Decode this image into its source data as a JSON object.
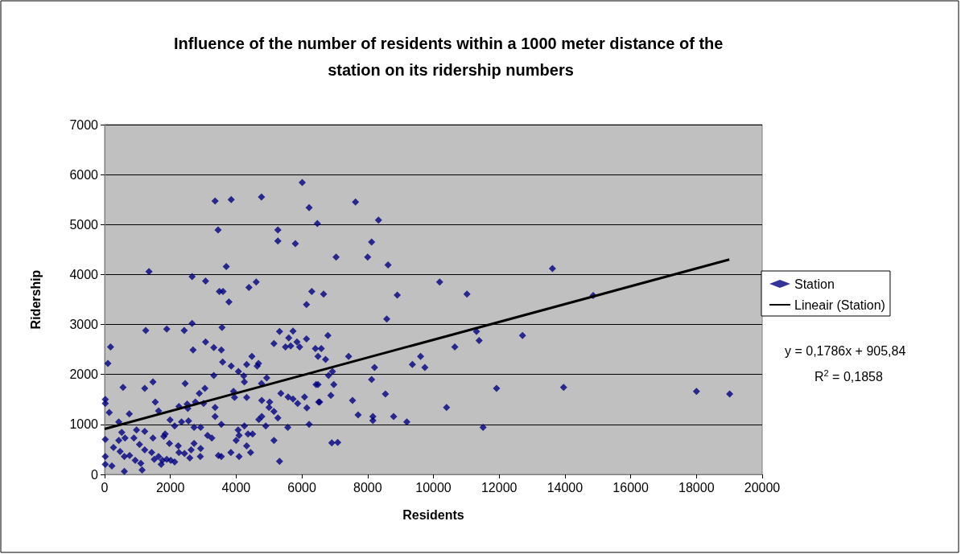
{
  "chart_data": {
    "type": "scatter",
    "title": "Influence of the number of residents within a 1000 meter distance of the station on its ridership numbers",
    "xlabel": "Residents",
    "ylabel": "Ridership",
    "xlim": [
      0,
      20000
    ],
    "xticks": [
      0,
      2000,
      4000,
      6000,
      8000,
      10000,
      12000,
      14000,
      16000,
      18000,
      20000
    ],
    "ylim": [
      0,
      7000
    ],
    "yticks": [
      0,
      1000,
      2000,
      3000,
      4000,
      5000,
      6000,
      7000
    ],
    "grid": "y",
    "legend": "right",
    "annotations": [
      "y = 0,1786x + 905,84",
      "R$^{2}$ = 0,1858"
    ],
    "series": [
      {
        "name": "Station",
        "marker": "diamond",
        "color": "#000080",
        "x": [
          1350,
          2660,
          3070,
          3360,
          3450,
          3700,
          3490,
          3600,
          3850,
          4390,
          4610,
          4770,
          5270,
          5270,
          5800,
          6010,
          6220,
          6470,
          6300,
          6660,
          7630,
          8330,
          8120,
          7040,
          8000,
          8620,
          10190,
          8900,
          11020,
          13620,
          14860,
          13960,
          18000,
          19010,
          8580,
          6790,
          6590,
          6490,
          6720,
          7420,
          8210,
          9360,
          9610,
          9740,
          10650,
          11310,
          11390,
          12710,
          6810,
          6930,
          8120,
          6970,
          6490,
          6880,
          6540,
          7540,
          8540,
          11920,
          10400,
          7710,
          8160,
          8160,
          8790,
          9190,
          11510,
          6910,
          7090,
          3780,
          6140,
          1250,
          1890,
          2420,
          2660,
          3570,
          180,
          100,
          3070,
          2690,
          3320,
          3550,
          3590,
          3850,
          4320,
          4480,
          4640,
          4680,
          5150,
          5320,
          5600,
          5730,
          5850,
          5500,
          5660,
          5930,
          6140,
          6410,
          3320,
          560,
          1220,
          1470,
          2450,
          2880,
          3050,
          4070,
          4230,
          4250,
          4770,
          4930,
          3920,
          3950,
          4320,
          20,
          20,
          140,
          750,
          1540,
          1640,
          2260,
          2510,
          2530,
          2760,
          3010,
          3360,
          3360,
          4780,
          5020,
          5000,
          5150,
          5270,
          5360,
          5580,
          5730,
          5870,
          6080,
          6150,
          6430,
          6510,
          430,
          1990,
          2130,
          2340,
          2550,
          2720,
          2920,
          3550,
          4060,
          4250,
          4360,
          4500,
          4690,
          4780,
          4900,
          5570,
          6220,
          20,
          270,
          520,
          430,
          620,
          970,
          1220,
          1470,
          1840,
          1800,
          1970,
          2240,
          2720,
          3130,
          3260,
          4000,
          4090,
          5150,
          890,
          1060,
          1220,
          1430,
          470,
          600,
          760,
          930,
          1100,
          20,
          20,
          220,
          600,
          1140,
          1510,
          1640,
          1760,
          1890,
          2010,
          2130,
          1720,
          2260,
          2430,
          2590,
          2630,
          2920,
          2910,
          3460,
          3550,
          3840,
          4090,
          4320,
          4440,
          5320
        ],
        "values": [
          4060,
          3960,
          3870,
          5470,
          4890,
          4160,
          3660,
          3660,
          5500,
          3740,
          3850,
          5550,
          4890,
          4670,
          4620,
          5840,
          5340,
          5020,
          3660,
          3610,
          5450,
          5090,
          4650,
          4350,
          4350,
          4190,
          3850,
          3590,
          3610,
          4120,
          3580,
          1740,
          1660,
          1610,
          3110,
          2780,
          2520,
          2360,
          2300,
          2360,
          2140,
          2200,
          2360,
          2140,
          2550,
          2860,
          2680,
          2780,
          1980,
          2060,
          1900,
          1800,
          1800,
          1580,
          1450,
          1480,
          1610,
          1720,
          1340,
          1190,
          1160,
          1080,
          1160,
          1050,
          940,
          630,
          640,
          3450,
          3400,
          2880,
          2910,
          2880,
          3020,
          2940,
          2550,
          2220,
          2650,
          2490,
          2540,
          2490,
          2250,
          2170,
          2200,
          2360,
          2170,
          2220,
          2620,
          2860,
          2730,
          2870,
          2650,
          2550,
          2570,
          2550,
          2710,
          2520,
          1980,
          1740,
          1720,
          1850,
          1820,
          1620,
          1720,
          2060,
          1970,
          1850,
          1820,
          1930,
          1660,
          1540,
          1540,
          1500,
          1420,
          1240,
          1210,
          1450,
          1270,
          1360,
          1410,
          1320,
          1450,
          1420,
          1340,
          1160,
          1480,
          1450,
          1340,
          1260,
          1130,
          1620,
          1550,
          1510,
          1420,
          1550,
          1330,
          1800,
          1450,
          1050,
          1090,
          970,
          1050,
          1070,
          940,
          940,
          1000,
          890,
          970,
          810,
          810,
          1100,
          1160,
          970,
          940,
          1000,
          700,
          540,
          840,
          680,
          730,
          890,
          860,
          730,
          810,
          760,
          620,
          570,
          620,
          780,
          730,
          680,
          780,
          680,
          730,
          600,
          490,
          440,
          460,
          360,
          380,
          280,
          220,
          360,
          200,
          170,
          60,
          90,
          300,
          360,
          280,
          300,
          280,
          250,
          200,
          440,
          420,
          330,
          490,
          520,
          360,
          380,
          360,
          440,
          360,
          570,
          440,
          260
        ]
      },
      {
        "name": "Lineair (Station)",
        "type": "line",
        "marker": "none",
        "color": "#000000",
        "x": [
          0,
          19000
        ],
        "values": [
          910,
          4300
        ]
      }
    ]
  }
}
